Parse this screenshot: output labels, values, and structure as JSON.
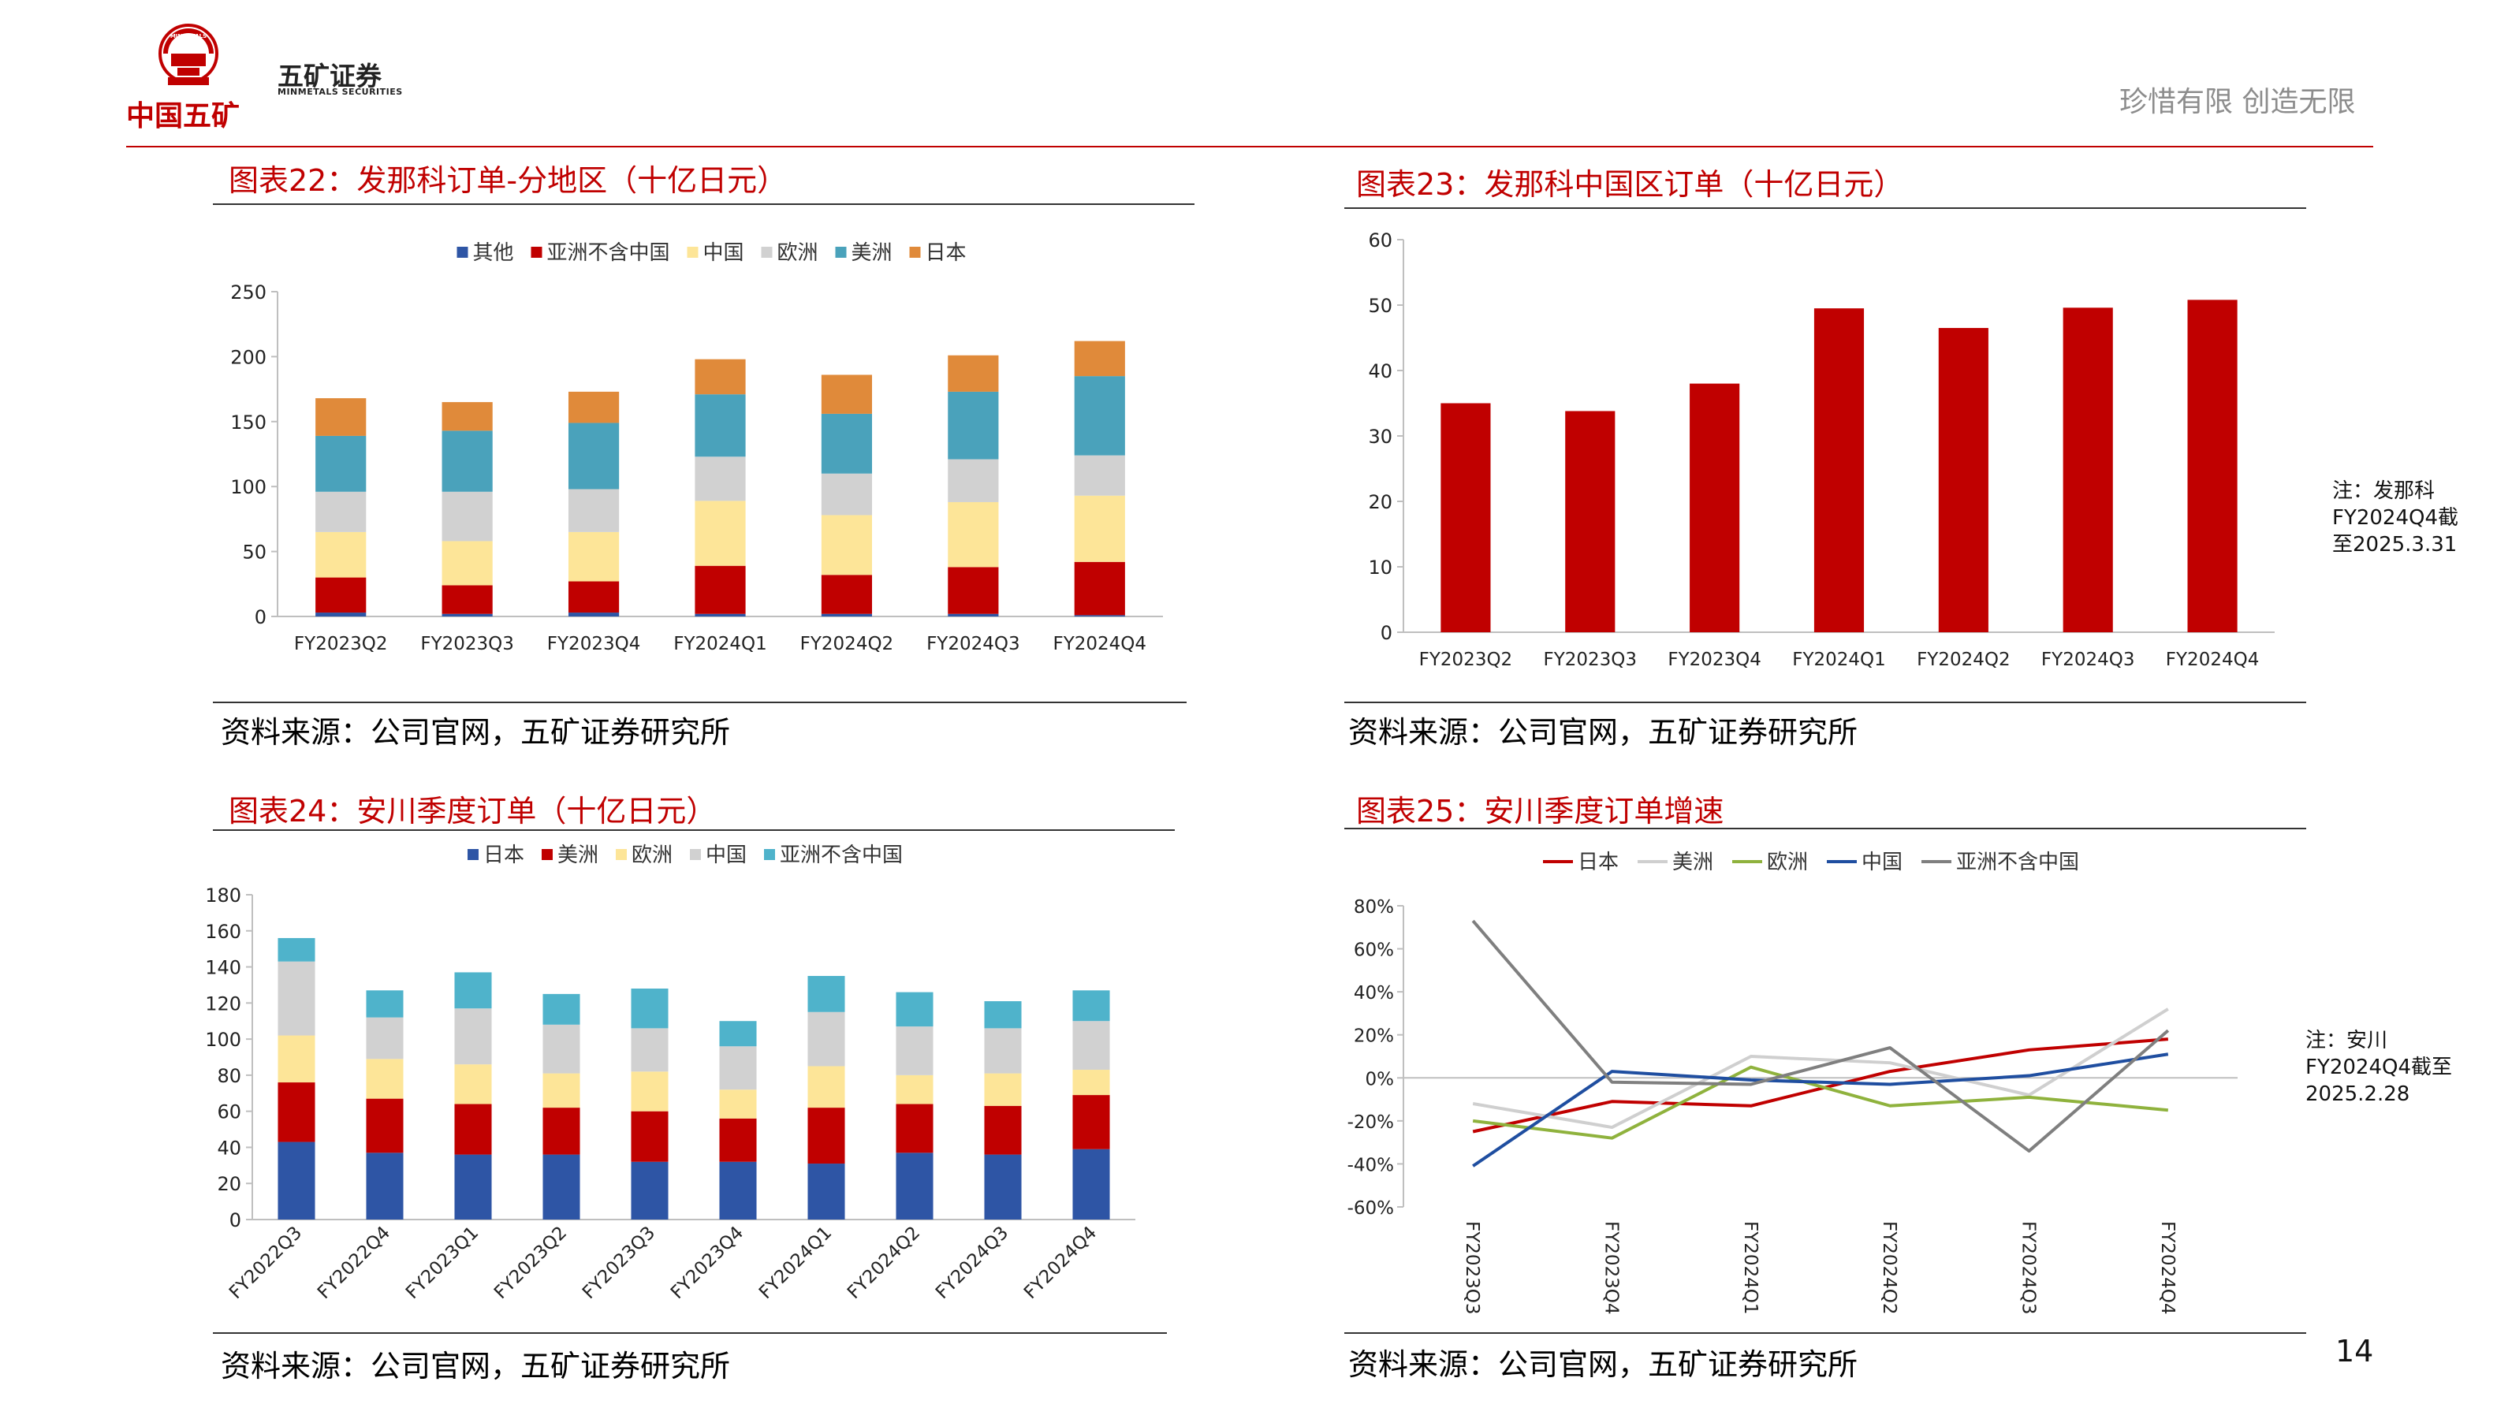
{
  "header": {
    "logo_cn": "中国五矿",
    "brand_cn": "五矿证券",
    "brand_en": "MINMETALS SECURITIES",
    "seal_text": "MINMETALS",
    "slogan": "珍惜有限  创造无限"
  },
  "colors": {
    "accent": "#c00000",
    "navy": "#2e55a5",
    "red": "#c00000",
    "yellow": "#fde598",
    "gray": "#d1d1d1",
    "teal": "#4aa2bb",
    "orange": "#e08a3a",
    "lightblue": "#4fb3cb"
  },
  "figures": {
    "fig22": {
      "title": "图表22：发那科订单-分地区（十亿日元）",
      "source": "资料来源：公司官网，五矿证券研究所"
    },
    "fig23": {
      "title": "图表23：发那科中国区订单（十亿日元）",
      "source": "资料来源：公司官网，五矿证券研究所",
      "note": [
        "注：发那科",
        "FY2024Q4截",
        "至2025.3.31"
      ]
    },
    "fig24": {
      "title": "图表24：安川季度订单（十亿日元）",
      "source": "资料来源：公司官网，五矿证券研究所"
    },
    "fig25": {
      "title": "图表25：安川季度订单增速",
      "source": "资料来源：公司官网，五矿证券研究所",
      "note": [
        "注：安川",
        "FY2024Q4截至",
        "2025.2.28"
      ]
    }
  },
  "page_number": "14",
  "chart_data": [
    {
      "id": "fig22",
      "type": "bar",
      "stacked": true,
      "categories": [
        "FY2023Q2",
        "FY2023Q3",
        "FY2023Q4",
        "FY2024Q1",
        "FY2024Q2",
        "FY2024Q3",
        "FY2024Q4"
      ],
      "ylim": [
        0,
        250
      ],
      "yticks": [
        0,
        50,
        100,
        150,
        200,
        250
      ],
      "legend_position": "top",
      "series": [
        {
          "name": "其他",
          "color": "#2e55a5",
          "values": [
            3,
            2,
            3,
            2,
            2,
            2,
            1
          ]
        },
        {
          "name": "亚洲不含中国",
          "color": "#c00000",
          "values": [
            27,
            22,
            24,
            37,
            30,
            36,
            41
          ]
        },
        {
          "name": "中国",
          "color": "#fde598",
          "values": [
            35,
            34,
            38,
            50,
            46,
            50,
            51
          ]
        },
        {
          "name": "欧洲",
          "color": "#d1d1d1",
          "values": [
            31,
            38,
            33,
            34,
            32,
            33,
            31
          ]
        },
        {
          "name": "美洲",
          "color": "#4aa2bb",
          "values": [
            43,
            47,
            51,
            48,
            46,
            52,
            61
          ]
        },
        {
          "name": "日本",
          "color": "#e08a3a",
          "values": [
            29,
            22,
            24,
            27,
            30,
            28,
            27
          ]
        }
      ]
    },
    {
      "id": "fig23",
      "type": "bar",
      "categories": [
        "FY2023Q2",
        "FY2023Q3",
        "FY2023Q4",
        "FY2024Q1",
        "FY2024Q2",
        "FY2024Q3",
        "FY2024Q4"
      ],
      "ylim": [
        0,
        60
      ],
      "yticks": [
        0,
        10,
        20,
        30,
        40,
        50,
        60
      ],
      "series": [
        {
          "name": "",
          "color": "#c00000",
          "values": [
            35,
            33.8,
            38,
            49.5,
            46.5,
            49.6,
            50.8
          ]
        }
      ]
    },
    {
      "id": "fig24",
      "type": "bar",
      "stacked": true,
      "categories": [
        "FY2022Q3",
        "FY2022Q4",
        "FY2023Q1",
        "FY2023Q2",
        "FY2023Q3",
        "FY2023Q4",
        "FY2024Q1",
        "FY2024Q2",
        "FY2024Q3",
        "FY2024Q4"
      ],
      "ylim": [
        0,
        180
      ],
      "yticks": [
        0,
        20,
        40,
        60,
        80,
        100,
        120,
        140,
        160,
        180
      ],
      "legend_position": "top",
      "series": [
        {
          "name": "日本",
          "color": "#2e55a5",
          "values": [
            43,
            37,
            36,
            36,
            32,
            32,
            31,
            37,
            36,
            39
          ]
        },
        {
          "name": "美洲",
          "color": "#c00000",
          "values": [
            33,
            30,
            28,
            26,
            28,
            24,
            31,
            27,
            27,
            30
          ]
        },
        {
          "name": "欧洲",
          "color": "#fde598",
          "values": [
            26,
            22,
            22,
            19,
            22,
            16,
            23,
            16,
            18,
            14
          ]
        },
        {
          "name": "中国",
          "color": "#d1d1d1",
          "values": [
            41,
            23,
            31,
            27,
            24,
            24,
            30,
            27,
            25,
            27
          ]
        },
        {
          "name": "亚洲不含中国",
          "color": "#4fb3cb",
          "values": [
            13,
            15,
            20,
            17,
            22,
            14,
            20,
            19,
            15,
            17
          ]
        }
      ]
    },
    {
      "id": "fig25",
      "type": "line",
      "categories": [
        "FY2023Q3",
        "FY2023Q4",
        "FY2024Q1",
        "FY2024Q2",
        "FY2024Q3",
        "FY2024Q4"
      ],
      "ylim": [
        -60,
        80
      ],
      "yticks": [
        -60,
        -40,
        -20,
        0,
        20,
        40,
        60,
        80
      ],
      "y_unit": "%",
      "legend_position": "top",
      "series": [
        {
          "name": "日本",
          "color": "#c00000",
          "values": [
            -25,
            -11,
            -13,
            3,
            13,
            18
          ]
        },
        {
          "name": "美洲",
          "color": "#cfcfcf",
          "values": [
            -12,
            -23,
            10,
            7,
            -8,
            32
          ]
        },
        {
          "name": "欧洲",
          "color": "#8fb23d",
          "values": [
            -20,
            -28,
            5,
            -13,
            -9,
            -15
          ]
        },
        {
          "name": "中国",
          "color": "#1f4ea0",
          "values": [
            -41,
            3,
            -1,
            -3,
            1,
            11
          ]
        },
        {
          "name": "亚洲不含中国",
          "color": "#7f7f7f",
          "values": [
            73,
            -2,
            -3,
            14,
            -34,
            22
          ]
        }
      ]
    }
  ]
}
